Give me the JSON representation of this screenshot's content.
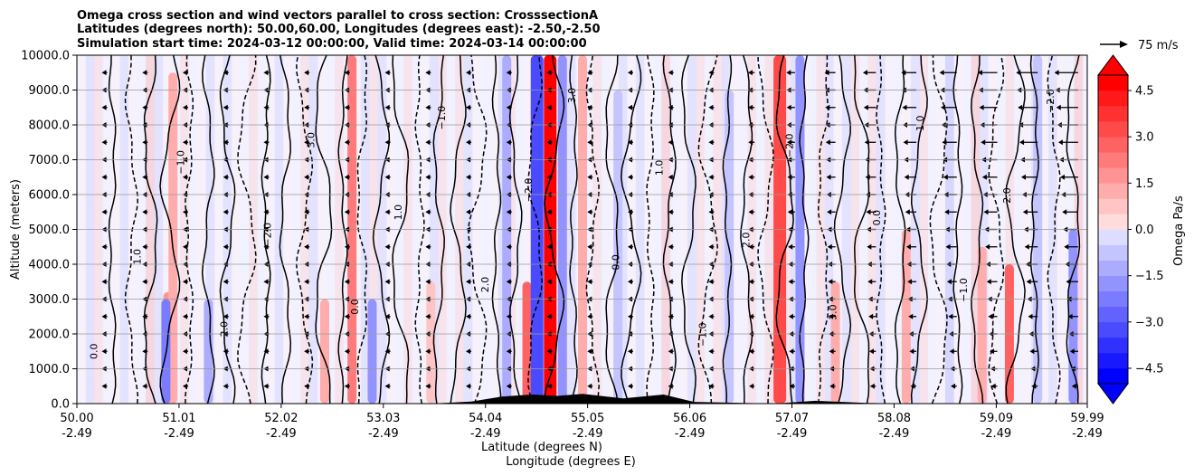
{
  "chart_data": {
    "type": "contour",
    "title_lines": [
      "Omega cross section and wind vectors parallel to cross section: CrosssectionA",
      "Latitudes (degrees north): 50.00,60.00, Longitudes (degrees east): -2.50,-2.50",
      "Simulation start time: 2024-03-12 00:00:00, Valid time: 2024-03-14 00:00:00"
    ],
    "ylabel": "Altitude (meters)",
    "xlabel_lines": [
      "Latitude (degrees N)",
      "Longitude (degrees E)"
    ],
    "ylim": [
      0,
      10000
    ],
    "yticks": [
      "0.0",
      "1000.0",
      "2000.0",
      "3000.0",
      "4000.0",
      "5000.0",
      "6000.0",
      "7000.0",
      "8000.0",
      "9000.0",
      "10000.0"
    ],
    "grid_y": true,
    "xlim": [
      50.0,
      59.99
    ],
    "xticks": [
      {
        "lat": "50.00",
        "lon": "-2.49"
      },
      {
        "lat": "51.01",
        "lon": "-2.49"
      },
      {
        "lat": "52.02",
        "lon": "-2.49"
      },
      {
        "lat": "53.03",
        "lon": "-2.49"
      },
      {
        "lat": "54.04",
        "lon": "-2.49"
      },
      {
        "lat": "55.05",
        "lon": "-2.49"
      },
      {
        "lat": "56.06",
        "lon": "-2.49"
      },
      {
        "lat": "57.07",
        "lon": "-2.49"
      },
      {
        "lat": "58.08",
        "lon": "-2.49"
      },
      {
        "lat": "59.09",
        "lon": "-2.49"
      },
      {
        "lat": "59.99",
        "lon": "-2.49"
      }
    ],
    "colorbar": {
      "label": "Omega Pa/s",
      "range": [
        -5.0,
        5.0
      ],
      "ticks": [
        "4.5",
        "3.0",
        "1.5",
        "0.0",
        "−1.5",
        "−3.0",
        "−4.5"
      ],
      "extend": "both",
      "cmap": "bwr"
    },
    "quiver_key": {
      "label": "75 m/s",
      "speed": 75
    },
    "contour_labels": [
      "0.0",
      "1.0",
      "−1.0",
      "2.0",
      "−2.0",
      "3.0"
    ],
    "omega_features": [
      {
        "lat": 50.9,
        "zmax": 3200,
        "value": 2.0
      },
      {
        "lat": 50.95,
        "zmax": 9500,
        "value": 1.5
      },
      {
        "lat": 50.88,
        "zmax": 3000,
        "value": -2.5
      },
      {
        "lat": 51.3,
        "zmax": 3000,
        "value": -1.5
      },
      {
        "lat": 52.45,
        "zmax": 3000,
        "value": 1.5
      },
      {
        "lat": 52.72,
        "zmax": 10000,
        "value": 2.5
      },
      {
        "lat": 52.92,
        "zmax": 3000,
        "value": -2.0
      },
      {
        "lat": 53.5,
        "zmax": 3500,
        "value": 1.0
      },
      {
        "lat": 54.25,
        "zmax": 10000,
        "value": -1.5
      },
      {
        "lat": 54.45,
        "zmax": 3500,
        "value": 3.0
      },
      {
        "lat": 54.55,
        "zmax": 10000,
        "value": -3.5
      },
      {
        "lat": 54.68,
        "zmax": 10000,
        "value": 5.0
      },
      {
        "lat": 54.8,
        "zmax": 10000,
        "value": -2.0
      },
      {
        "lat": 55.0,
        "zmax": 10000,
        "value": 1.5
      },
      {
        "lat": 55.35,
        "zmax": 9000,
        "value": -1.0
      },
      {
        "lat": 56.45,
        "zmax": 9000,
        "value": -1.0
      },
      {
        "lat": 56.95,
        "zmax": 10000,
        "value": 3.5
      },
      {
        "lat": 57.15,
        "zmax": 10000,
        "value": -2.0
      },
      {
        "lat": 57.5,
        "zmax": 3500,
        "value": 1.5
      },
      {
        "lat": 58.2,
        "zmax": 5000,
        "value": 1.5
      },
      {
        "lat": 58.95,
        "zmax": 4500,
        "value": 1.5
      },
      {
        "lat": 59.22,
        "zmax": 4000,
        "value": 3.0
      },
      {
        "lat": 59.5,
        "zmax": 10000,
        "value": -1.0
      },
      {
        "lat": 59.85,
        "zmax": 5000,
        "value": -2.0
      }
    ],
    "terrain": [
      {
        "lat": 53.5,
        "z": 0
      },
      {
        "lat": 53.9,
        "z": 60
      },
      {
        "lat": 54.2,
        "z": 200
      },
      {
        "lat": 54.5,
        "z": 260
      },
      {
        "lat": 54.75,
        "z": 220
      },
      {
        "lat": 55.0,
        "z": 280
      },
      {
        "lat": 55.4,
        "z": 150
      },
      {
        "lat": 55.8,
        "z": 260
      },
      {
        "lat": 56.1,
        "z": 50
      },
      {
        "lat": 56.9,
        "z": 0
      },
      {
        "lat": 57.3,
        "z": 80
      },
      {
        "lat": 57.8,
        "z": 20
      },
      {
        "lat": 58.2,
        "z": 0
      }
    ]
  }
}
